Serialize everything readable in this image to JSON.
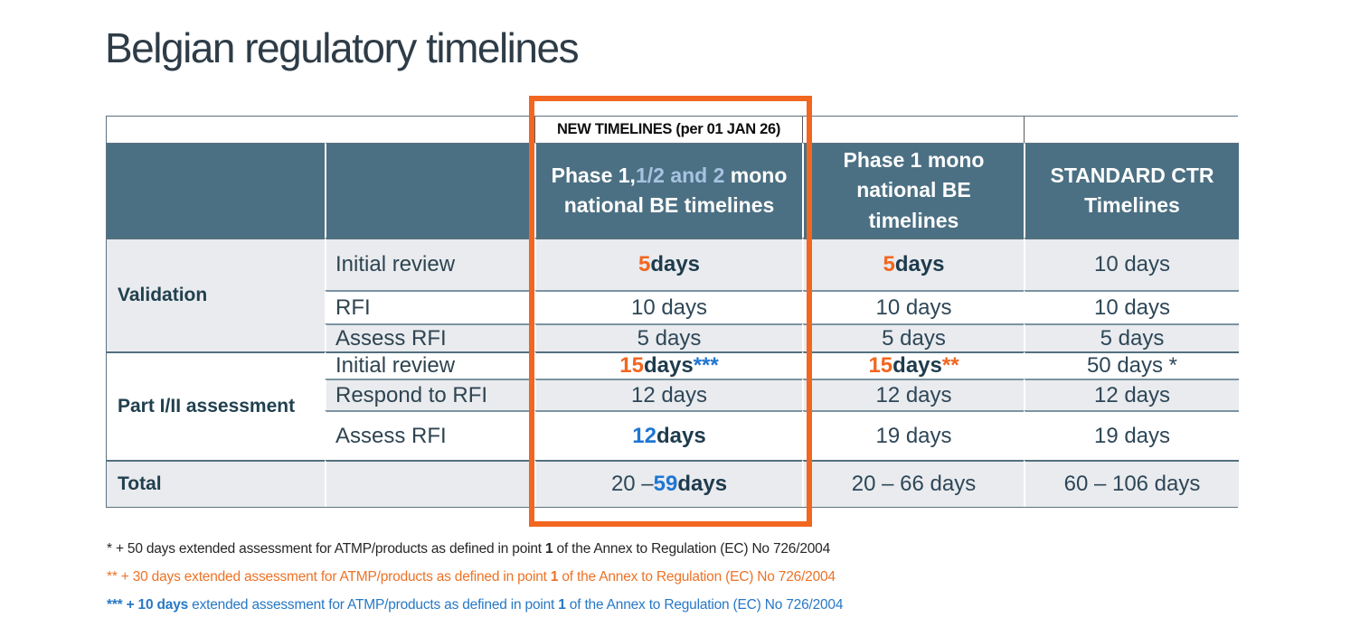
{
  "title": "Belgian regulatory timelines",
  "colors": {
    "accent_orange": "#F2661F",
    "accent_blue": "#1F76D2",
    "header_slate": "#4C7083",
    "header_light_blue": "#A6C3E1",
    "row_gray": "#E9EBEE",
    "footnote_orange": "#ED7225",
    "footnote_blue": "#2778C5"
  },
  "table": {
    "banner": "NEW TIMELINES (per 01 JAN 26)",
    "headers": {
      "new_timelines": [
        {
          "t": "Phase 1,",
          "c": "white"
        },
        {
          "t": "1/2 and 2",
          "c": "lb"
        },
        {
          "t": " mono national BE timelines",
          "c": "white"
        }
      ],
      "phase1_mono": "Phase 1 mono national BE timelines",
      "standard_ctr": "STANDARD CTR Timelines"
    },
    "groups": [
      {
        "label": "Validation"
      },
      {
        "label": "Part I/II assessment"
      }
    ],
    "rows": [
      {
        "step": "Initial review",
        "new": [
          {
            "t": "5",
            "c": "o"
          },
          {
            "t": " days",
            "c": "d"
          }
        ],
        "mono": [
          {
            "t": "5",
            "c": "o"
          },
          {
            "t": " days",
            "c": "d"
          }
        ],
        "ctr": [
          {
            "t": "10 days",
            "c": "r"
          }
        ]
      },
      {
        "step": "RFI",
        "new": [
          {
            "t": "10 days",
            "c": "r"
          }
        ],
        "mono": [
          {
            "t": "10 days",
            "c": "r"
          }
        ],
        "ctr": [
          {
            "t": "10 days",
            "c": "r"
          }
        ]
      },
      {
        "step": "Assess RFI",
        "new": [
          {
            "t": "5 days",
            "c": "r"
          }
        ],
        "mono": [
          {
            "t": "5 days",
            "c": "r"
          }
        ],
        "ctr": [
          {
            "t": "5 days",
            "c": "r"
          }
        ]
      },
      {
        "step": "Initial review",
        "new": [
          {
            "t": "15",
            "c": "o"
          },
          {
            "t": " days ",
            "c": "d"
          },
          {
            "t": "***",
            "c": "b"
          }
        ],
        "mono": [
          {
            "t": "15",
            "c": "o"
          },
          {
            "t": " days ",
            "c": "d"
          },
          {
            "t": "**",
            "c": "o"
          }
        ],
        "ctr": [
          {
            "t": "50 days *",
            "c": "r"
          }
        ]
      },
      {
        "step": "Respond to RFI",
        "new": [
          {
            "t": "12 days",
            "c": "r"
          }
        ],
        "mono": [
          {
            "t": "12 days",
            "c": "r"
          }
        ],
        "ctr": [
          {
            "t": "12 days",
            "c": "r"
          }
        ]
      },
      {
        "step": "Assess RFI",
        "new": [
          {
            "t": "12",
            "c": "b"
          },
          {
            "t": " days",
            "c": "d"
          }
        ],
        "mono": [
          {
            "t": "19 days",
            "c": "r"
          }
        ],
        "ctr": [
          {
            "t": "19 days",
            "c": "r"
          }
        ]
      }
    ],
    "total": {
      "label": "Total",
      "new": [
        {
          "t": "20 – ",
          "c": "r"
        },
        {
          "t": "59",
          "c": "b"
        },
        {
          "t": " days",
          "c": "d"
        }
      ],
      "mono": [
        {
          "t": "20 – 66 days",
          "c": "r"
        }
      ],
      "ctr": [
        {
          "t": "60 – 106 days",
          "c": "r"
        }
      ]
    }
  },
  "footnotes": [
    {
      "segments": [
        {
          "t": "* + 50 days extended assessment for ATMP/products as defined in point ",
          "c": "k"
        },
        {
          "t": "1",
          "c": "kb"
        },
        {
          "t": " of the Annex to Regulation (EC) No 726/2004",
          "c": "k"
        }
      ]
    },
    {
      "segments": [
        {
          "t": "** + 30 days extended assessment for ATMP/products as defined in point ",
          "c": "og"
        },
        {
          "t": "1",
          "c": "ogb"
        },
        {
          "t": " of the Annex to Regulation (EC) No 726/2004",
          "c": "og"
        }
      ]
    },
    {
      "segments": [
        {
          "t": "*** + 10 days",
          "c": "blb"
        },
        {
          "t": " extended assessment for ATMP/products as defined in point ",
          "c": "bl"
        },
        {
          "t": "1",
          "c": "blb"
        },
        {
          "t": " of the Annex to Regulation (EC) No 726/2004",
          "c": "bl"
        }
      ]
    }
  ]
}
